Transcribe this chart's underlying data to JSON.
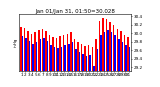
{
  "title": "Jan 01/Jan 31, 01:50=30.028",
  "ylabel_left": "inHg",
  "day_labels": [
    "1",
    "2",
    "3",
    "4",
    "5",
    "6",
    "7",
    "8",
    "9",
    "10",
    "11",
    "12",
    "13",
    "14",
    "15",
    "16",
    "17",
    "18",
    "19",
    "20",
    "21",
    "22",
    "23",
    "24",
    "25",
    "26",
    "27",
    "28",
    "29",
    "30",
    "31"
  ],
  "highs": [
    30.15,
    30.12,
    30.05,
    29.98,
    30.02,
    30.08,
    30.1,
    30.05,
    29.95,
    29.9,
    29.88,
    29.92,
    29.95,
    29.98,
    30.02,
    29.85,
    29.8,
    29.75,
    29.7,
    29.72,
    29.68,
    29.85,
    30.28,
    30.35,
    30.32,
    30.25,
    30.18,
    30.1,
    30.05,
    29.95,
    29.9
  ],
  "lows": [
    29.92,
    29.88,
    29.82,
    29.75,
    29.78,
    29.85,
    29.88,
    29.82,
    29.72,
    29.68,
    29.65,
    29.68,
    29.72,
    29.75,
    29.78,
    29.62,
    29.55,
    29.5,
    29.45,
    29.48,
    29.22,
    29.62,
    29.95,
    30.02,
    30.08,
    30.02,
    29.95,
    29.85,
    29.8,
    29.72,
    29.68
  ],
  "high_color": "#ff0000",
  "low_color": "#0000ff",
  "bg_color": "#ffffff",
  "ylim_min": 29.1,
  "ylim_max": 30.45,
  "yticks": [
    29.2,
    29.4,
    29.6,
    29.8,
    30.0,
    30.2,
    30.4
  ],
  "title_fontsize": 4.0,
  "tick_fontsize": 3.0,
  "bar_width": 0.42,
  "fig_width": 1.6,
  "fig_height": 0.87,
  "dpi": 100
}
